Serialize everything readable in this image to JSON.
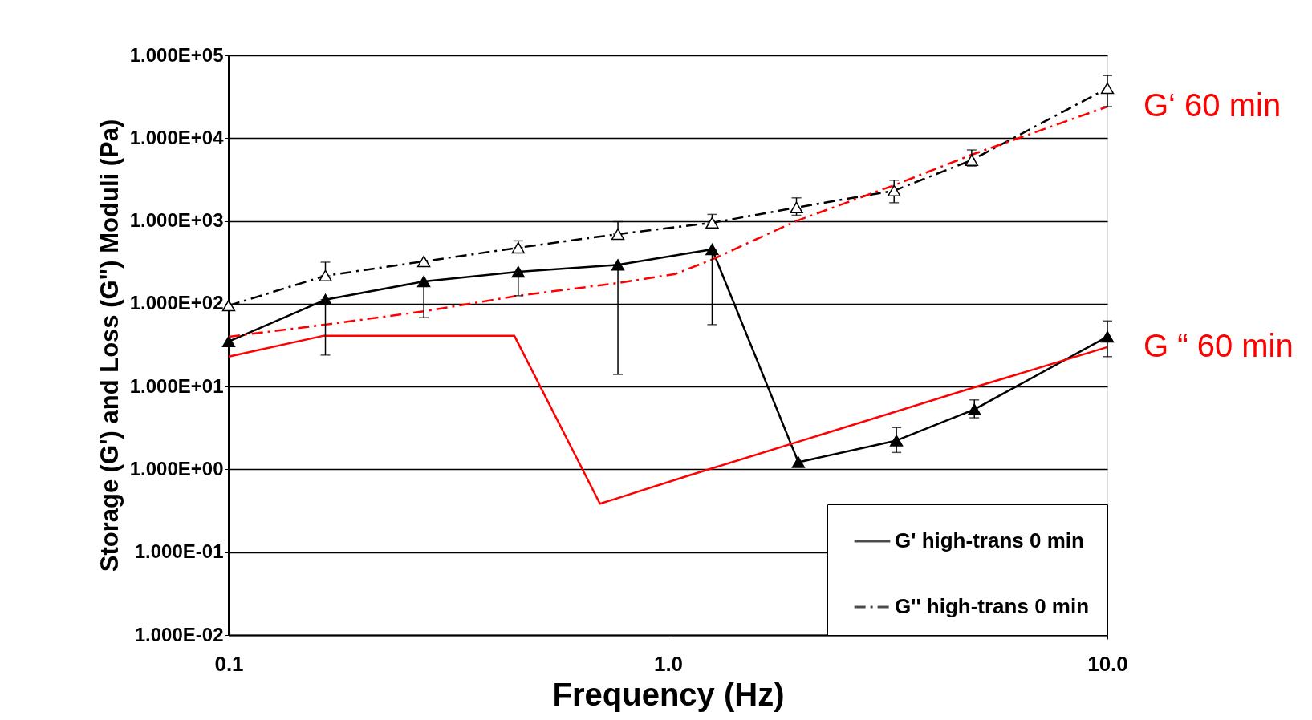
{
  "chart_data": {
    "type": "line",
    "xlabel": "Frequency (Hz)",
    "ylabel": "Storage (G') and Loss (G\") Moduli (Pa)",
    "log": "xy",
    "grid": "y",
    "legend": "bottom right",
    "xlim": [
      0.1,
      10
    ],
    "xticks": [
      {
        "value": 0.1,
        "label": "0.1"
      },
      {
        "value": 1,
        "label": "1.0"
      },
      {
        "value": 10,
        "label": "10.0"
      }
    ],
    "ylim": [
      0.01,
      100000
    ],
    "yticks": [
      {
        "value": 0.01,
        "label": "1.000E-02"
      },
      {
        "value": 0.1,
        "label": "1.000E-01"
      },
      {
        "value": 1,
        "label": "1.000E+00"
      },
      {
        "value": 10,
        "label": "1.000E+01"
      },
      {
        "value": 100,
        "label": "1.000E+02"
      },
      {
        "value": 1000,
        "label": "1.000E+03"
      },
      {
        "value": 10000,
        "label": "1.000E+04"
      },
      {
        "value": 100000,
        "label": "1.000E+05"
      }
    ],
    "series": [
      {
        "name": "G' high-trans 0 min",
        "color": "#000000",
        "line_style": "solid",
        "marker": "triangle",
        "x": [
          0.1,
          0.166,
          0.278,
          0.456,
          0.769,
          1.26,
          1.98,
          3.31,
          4.98,
          10
        ],
        "values": [
          35,
          112,
          186,
          243,
          295,
          454,
          1.22,
          2.23,
          5.3,
          40
        ],
        "errors": [
          null,
          [
            24,
            112
          ],
          [
            68,
            186
          ],
          [
            125,
            243
          ],
          [
            14,
            295
          ],
          [
            56,
            454
          ],
          null,
          [
            1.6,
            3.2
          ],
          [
            4.2,
            6.9
          ],
          [
            23,
            62
          ]
        ]
      },
      {
        "name": "G'' high-trans 0 min",
        "color": "#000000",
        "line_style": "dashed",
        "marker": "triangle",
        "x": [
          0.1,
          0.166,
          0.278,
          0.456,
          0.769,
          1.26,
          1.96,
          3.27,
          4.91,
          10
        ],
        "values": [
          95,
          218,
          325,
          475,
          694,
          950,
          1450,
          2320,
          5420,
          40000
        ],
        "errors": [
          null,
          [
            218,
            318
          ],
          null,
          [
            475,
            575
          ],
          [
            694,
            980
          ],
          [
            950,
            1200
          ],
          [
            1170,
            1900
          ],
          [
            1660,
            3100
          ],
          [
            4600,
            7200
          ],
          [
            24000,
            57000
          ]
        ]
      },
      {
        "name": "G‘ 60 min",
        "color": "#ff0000",
        "line_style": "dashed",
        "marker": "none",
        "x": [
          0.1,
          0.166,
          0.278,
          0.456,
          0.769,
          1.04,
          1.26,
          1.96,
          3.27,
          4.91,
          10
        ],
        "values": [
          40,
          56,
          81,
          125,
          178,
          229,
          343,
          1000,
          2700,
          6300,
          24000
        ]
      },
      {
        "name": "G “  60 min",
        "color": "#ff0000",
        "line_style": "solid",
        "marker": "none",
        "x": [
          0.1,
          0.164,
          0.447,
          0.7,
          1.12,
          5.14,
          10
        ],
        "values": [
          23,
          41,
          41,
          0.385,
          0.85,
          10.3,
          30
        ]
      }
    ]
  }
}
